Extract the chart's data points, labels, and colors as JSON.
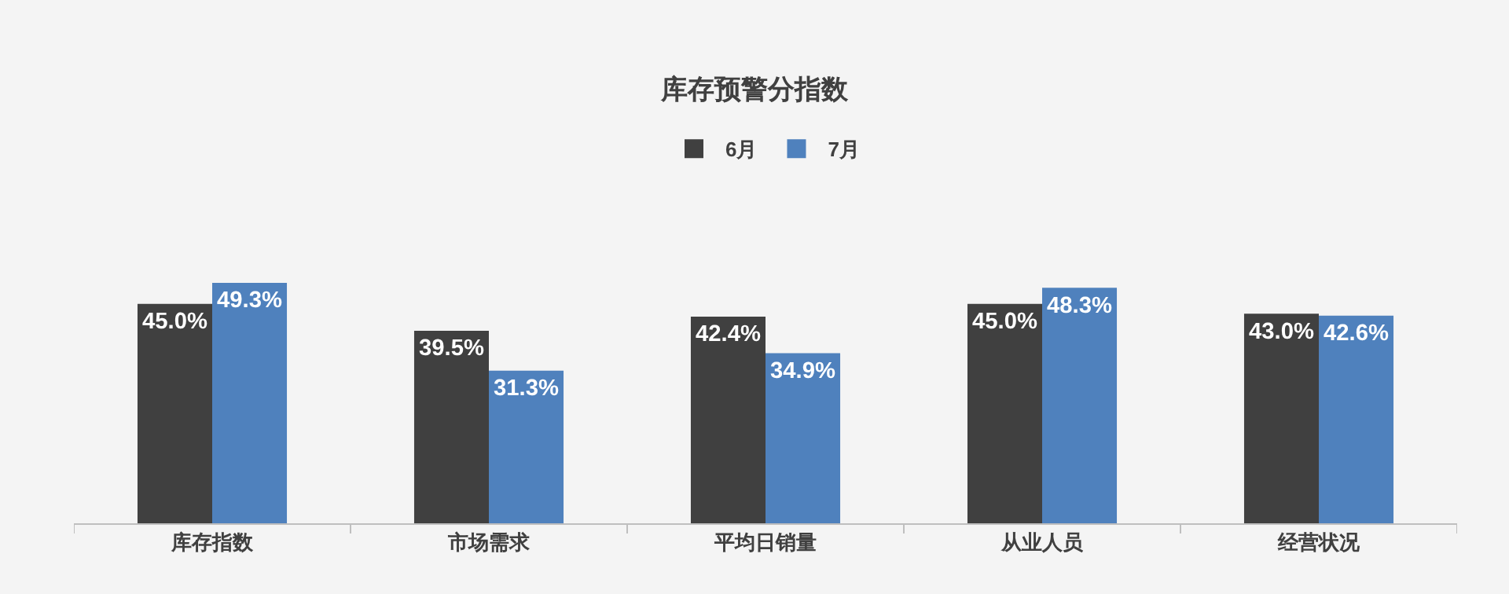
{
  "chart_data": {
    "type": "bar",
    "title": "库存预警分指数",
    "categories": [
      "库存指数",
      "市场需求",
      "平均日销量",
      "从业人员",
      "经营状况"
    ],
    "series": [
      {
        "name": "6月",
        "color": "#404040",
        "values": [
          45.0,
          39.5,
          42.4,
          45.0,
          43.0
        ],
        "value_labels": [
          "45.0%",
          "39.5%",
          "42.4%",
          "45.0%",
          "43.0%"
        ]
      },
      {
        "name": "7月",
        "color": "#4f81bd",
        "values": [
          49.3,
          31.3,
          34.9,
          48.3,
          42.6
        ],
        "value_labels": [
          "49.3%",
          "31.3%",
          "34.9%",
          "48.3%",
          "42.6%"
        ]
      }
    ],
    "tick_labels": "x",
    "grid": false,
    "legend": "top"
  }
}
